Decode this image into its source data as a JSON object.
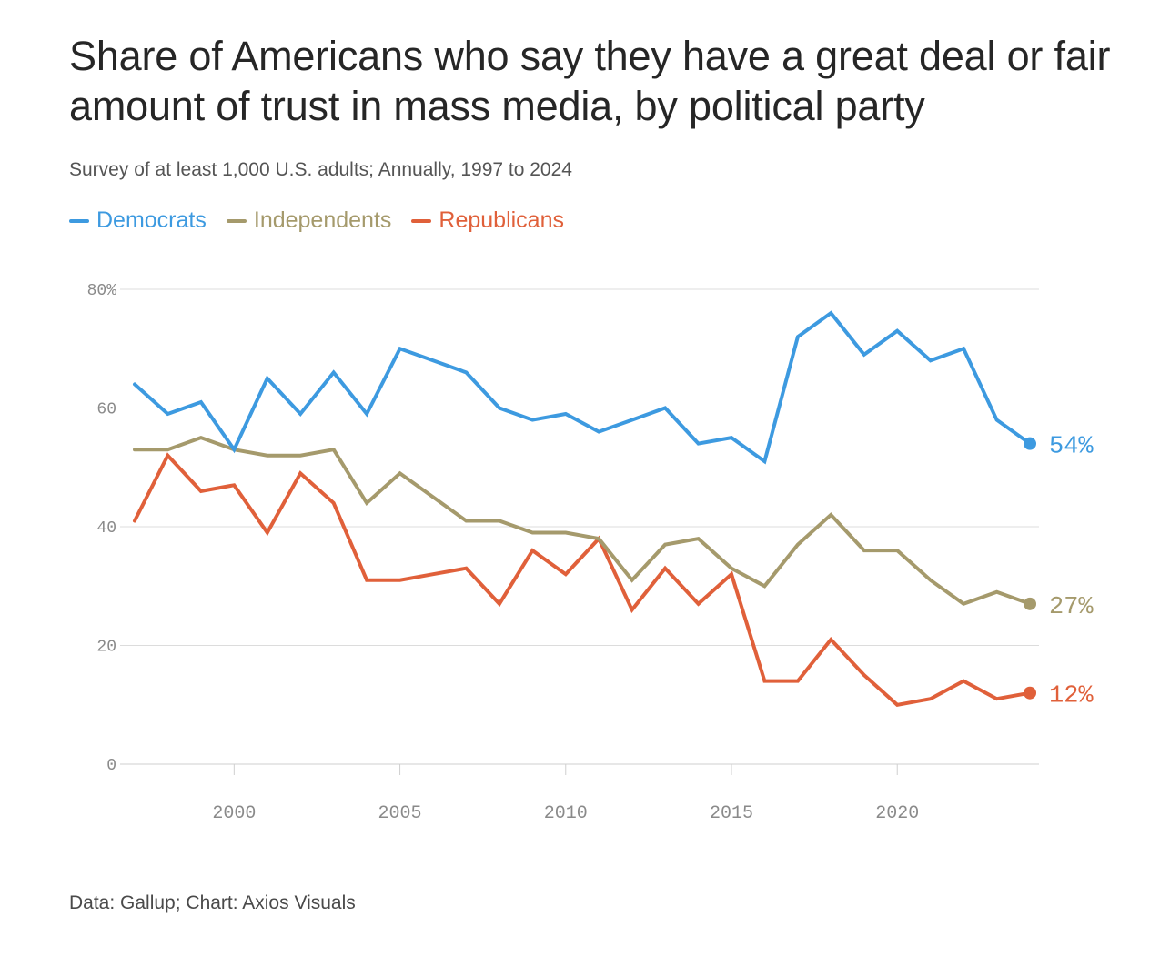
{
  "title": "Share of Americans who say they have a great deal or fair amount of trust in mass media, by political party",
  "subtitle": "Survey of at least 1,000 U.S. adults; Annually, 1997 to 2024",
  "footer": "Data: Gallup; Chart: Axios Visuals",
  "chart_data": {
    "type": "line",
    "title": "Share of Americans who say they have a great deal or fair amount of trust in mass media, by political party",
    "xlabel": "",
    "ylabel": "",
    "xlim": [
      1997,
      2024
    ],
    "ylim": [
      0,
      80
    ],
    "y_ticks": [
      0,
      20,
      40,
      60,
      80
    ],
    "y_tick_labels": [
      "0",
      "20",
      "40",
      "60",
      "80%"
    ],
    "x_ticks": [
      2000,
      2005,
      2010,
      2015,
      2020
    ],
    "x_tick_labels": [
      "2000",
      "2005",
      "2010",
      "2015",
      "2020"
    ],
    "grid": true,
    "legend_position": "top-left",
    "x": [
      1997,
      1998,
      1999,
      2000,
      2001,
      2002,
      2003,
      2004,
      2005,
      2006,
      2007,
      2008,
      2009,
      2010,
      2011,
      2012,
      2013,
      2014,
      2015,
      2016,
      2017,
      2018,
      2019,
      2020,
      2021,
      2022,
      2023,
      2024
    ],
    "series": [
      {
        "name": "Democrats",
        "color": "#3d9ae0",
        "values": [
          64,
          59,
          61,
          53,
          65,
          59,
          66,
          59,
          70,
          68,
          66,
          60,
          58,
          59,
          56,
          58,
          60,
          54,
          55,
          51,
          72,
          76,
          69,
          73,
          68,
          70,
          58,
          54
        ],
        "end_label": "54%"
      },
      {
        "name": "Independents",
        "color": "#a59a6c",
        "values": [
          53,
          53,
          55,
          53,
          52,
          52,
          53,
          44,
          49,
          45,
          41,
          41,
          39,
          39,
          38,
          31,
          37,
          38,
          33,
          30,
          37,
          42,
          36,
          36,
          31,
          27,
          29,
          27
        ],
        "end_label": "27%"
      },
      {
        "name": "Republicans",
        "color": "#e0603a",
        "values": [
          41,
          52,
          46,
          47,
          39,
          49,
          44,
          31,
          31,
          32,
          33,
          27,
          36,
          32,
          38,
          26,
          33,
          27,
          32,
          14,
          14,
          21,
          15,
          10,
          11,
          14,
          11,
          12
        ],
        "end_label": "12%"
      }
    ]
  }
}
